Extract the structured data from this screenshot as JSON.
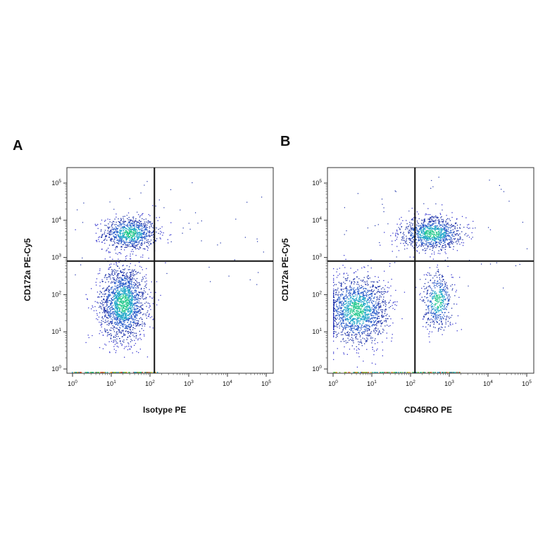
{
  "chart_data": [
    {
      "type": "scatter",
      "panel_label": "A",
      "xlabel": "Isotype PE",
      "ylabel": "CD172a PE-Cy5",
      "xscale": "log",
      "yscale": "log",
      "xlim": [
        1,
        100000
      ],
      "ylim": [
        1,
        100000
      ],
      "x_ticks": [
        "10^0",
        "10^1",
        "10^2",
        "10^3",
        "10^4",
        "10^5"
      ],
      "y_ticks": [
        "10^0",
        "10^1",
        "10^2",
        "10^3",
        "10^4",
        "10^5"
      ],
      "gate": {
        "x": 130,
        "y": 800
      },
      "populations": [
        {
          "center": [
            30,
            4500
          ],
          "spread": [
            0.35,
            0.22
          ],
          "count": 900
        },
        {
          "center": [
            20,
            60
          ],
          "spread": [
            0.3,
            0.5
          ],
          "count": 1800
        }
      ],
      "grid": false
    },
    {
      "type": "scatter",
      "panel_label": "B",
      "xlabel": "CD45RO PE",
      "ylabel": "CD172a PE-Cy5",
      "xscale": "log",
      "yscale": "log",
      "xlim": [
        1,
        100000
      ],
      "ylim": [
        1,
        100000
      ],
      "x_ticks": [
        "10^0",
        "10^1",
        "10^2",
        "10^3",
        "10^4",
        "10^5"
      ],
      "y_ticks": [
        "10^0",
        "10^1",
        "10^2",
        "10^3",
        "10^4",
        "10^5"
      ],
      "gate": {
        "x": 130,
        "y": 800
      },
      "populations": [
        {
          "center": [
            350,
            4500
          ],
          "spread": [
            0.4,
            0.22
          ],
          "count": 1000
        },
        {
          "center": [
            4,
            40
          ],
          "spread": [
            0.4,
            0.45
          ],
          "count": 1600
        },
        {
          "center": [
            500,
            70
          ],
          "spread": [
            0.2,
            0.4
          ],
          "count": 500
        }
      ],
      "grid": false
    }
  ]
}
